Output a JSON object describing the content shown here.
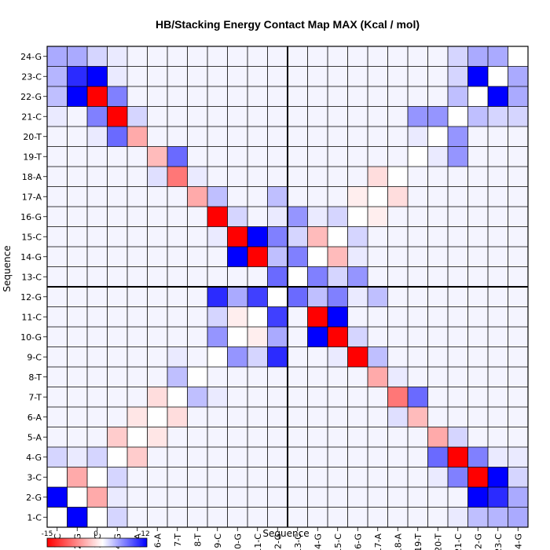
{
  "chart_data": {
    "type": "heatmap",
    "title": "HB/Stacking Energy Contact Map MAX (Kcal / mol)",
    "xlabel": "Sequence",
    "ylabel": "Sequence",
    "labels": [
      "1-C",
      "2-G",
      "3-C",
      "4-G",
      "5-A",
      "6-A",
      "7-T",
      "8-T",
      "9-C",
      "10-G",
      "11-C",
      "12-G",
      "13-C",
      "14-G",
      "15-C",
      "16-G",
      "17-A",
      "18-A",
      "19-T",
      "20-T",
      "21-C",
      "22-G",
      "23-C",
      "24-G"
    ],
    "colorbar": {
      "min": -15,
      "mid": 0,
      "max": 12,
      "ticks": [
        "-15",
        "0",
        "12"
      ]
    },
    "colors": {
      "negative": "#ff0000",
      "zero": "#ffffff",
      "positive": "#0000ff",
      "grid": "#000000"
    },
    "divider_after_index": 12,
    "matrix": [
      [
        0,
        12,
        0,
        2,
        0.5,
        0.5,
        0.5,
        0.5,
        0.5,
        0.5,
        0.5,
        0.5,
        0.5,
        0.5,
        0.5,
        0.5,
        0.5,
        0.5,
        0.5,
        0.5,
        1,
        3,
        3.5,
        4
      ],
      [
        12,
        0,
        -5,
        1,
        0.5,
        0.5,
        0.5,
        0.5,
        0.5,
        0.5,
        0.5,
        0.5,
        0.5,
        0.5,
        0.5,
        0.5,
        0.5,
        0.5,
        0.5,
        0.5,
        0.5,
        12,
        10,
        4
      ],
      [
        0,
        -5,
        0,
        2,
        0.5,
        0.5,
        0.5,
        0.5,
        0.5,
        0.5,
        0.5,
        0.5,
        0.5,
        0.5,
        0.5,
        0.5,
        0.5,
        0.5,
        0.5,
        1,
        6,
        -15,
        12,
        2
      ],
      [
        2,
        1,
        2,
        0,
        -3,
        0.5,
        0.5,
        0.5,
        0.5,
        0.5,
        0.5,
        0.5,
        0.5,
        0.5,
        0.5,
        0.5,
        0.5,
        0.5,
        0.5,
        7,
        -15,
        6,
        1,
        1
      ],
      [
        0.5,
        0.5,
        0.5,
        -3,
        0,
        -1.5,
        0.5,
        0.5,
        0.5,
        0.5,
        0.5,
        0.5,
        0.5,
        0.5,
        0.5,
        0.5,
        0.5,
        0.5,
        0.5,
        -5,
        2,
        0.5,
        0.5,
        0.5
      ],
      [
        0.5,
        0.5,
        0.5,
        0.5,
        -1.5,
        0,
        -2,
        0.5,
        0.5,
        0.5,
        0.5,
        0.5,
        0.5,
        0.5,
        0.5,
        0.5,
        0.5,
        1.5,
        -4,
        0.5,
        0.5,
        0.5,
        0.5,
        0.5
      ],
      [
        0.5,
        0.5,
        0.5,
        0.5,
        0.5,
        -2,
        0,
        3,
        1,
        0.5,
        0.5,
        0.5,
        0.5,
        0.5,
        0.5,
        0.5,
        0.5,
        -8,
        7,
        0.5,
        0.5,
        0.5,
        0.5,
        0.5
      ],
      [
        0.5,
        0.5,
        0.5,
        0.5,
        0.5,
        0.5,
        3,
        0,
        0.5,
        0.5,
        0.5,
        0.5,
        0.5,
        0.5,
        0.5,
        0.5,
        -5,
        1,
        0.5,
        0.5,
        0.5,
        0.5,
        0.5,
        0.5
      ],
      [
        0.5,
        0.5,
        0.5,
        0.5,
        0.5,
        0.5,
        1,
        0.5,
        0,
        5,
        2,
        10,
        0.5,
        0.5,
        1,
        -15,
        3,
        0.5,
        0.5,
        0.5,
        0.5,
        0.5,
        0.5,
        0.5
      ],
      [
        0.5,
        0.5,
        0.5,
        0.5,
        0.5,
        0.5,
        0.5,
        0.5,
        5,
        0,
        -1,
        4,
        0.5,
        12,
        -15,
        2,
        0.5,
        0.5,
        0.5,
        0.5,
        0.5,
        0.5,
        0.5,
        0.5
      ],
      [
        0.5,
        0.5,
        0.5,
        0.5,
        0.5,
        0.5,
        0.5,
        0.5,
        2,
        -1,
        0,
        9,
        0.5,
        -15,
        12,
        0.5,
        0.5,
        0.5,
        0.5,
        0.5,
        0.5,
        0.5,
        0.5,
        0.5
      ],
      [
        0.5,
        0.5,
        0.5,
        0.5,
        0.5,
        0.5,
        0.5,
        0.5,
        10,
        4,
        9,
        0,
        7,
        3,
        6,
        1,
        3,
        0.5,
        0.5,
        0.5,
        0.5,
        0.5,
        0.5,
        0.5
      ],
      [
        0.5,
        0.5,
        0.5,
        0.5,
        0.5,
        0.5,
        0.5,
        0.5,
        0.5,
        0.5,
        0.5,
        7,
        0,
        6,
        2,
        5,
        0.5,
        0.5,
        0.5,
        0.5,
        0.5,
        0.5,
        0.5,
        0.5
      ],
      [
        0.5,
        0.5,
        0.5,
        0.5,
        0.5,
        0.5,
        0.5,
        0.5,
        0.5,
        12,
        -15,
        3,
        6,
        0,
        -4,
        1,
        0.5,
        0.5,
        0.5,
        0.5,
        0.5,
        0.5,
        0.5,
        0.5
      ],
      [
        0.5,
        0.5,
        0.5,
        0.5,
        0.5,
        0.5,
        0.5,
        0.5,
        1,
        -15,
        12,
        6,
        2,
        -4,
        0,
        2,
        0.5,
        0.5,
        0.5,
        0.5,
        0.5,
        0.5,
        0.5,
        0.5
      ],
      [
        0.5,
        0.5,
        0.5,
        0.5,
        0.5,
        0.5,
        0.5,
        0.5,
        -15,
        2,
        0.5,
        1,
        5,
        1,
        2,
        0,
        -1,
        0.5,
        0.5,
        0.5,
        0.5,
        0.5,
        0.5,
        0.5
      ],
      [
        0.5,
        0.5,
        0.5,
        0.5,
        0.5,
        0.5,
        0.5,
        -5,
        3,
        0.5,
        0.5,
        3,
        0.5,
        0.5,
        0.5,
        -1,
        0,
        -2,
        0.5,
        0.5,
        0.5,
        0.5,
        0.5,
        0.5
      ],
      [
        0.5,
        0.5,
        0.5,
        0.5,
        0.5,
        1.5,
        -8,
        1,
        0.5,
        0.5,
        0.5,
        0.5,
        0.5,
        0.5,
        0.5,
        0.5,
        -2,
        0,
        0.5,
        0.5,
        0.5,
        0.5,
        0.5,
        0.5
      ],
      [
        0.5,
        0.5,
        0.5,
        0.5,
        0.5,
        -4,
        7,
        0.5,
        0.5,
        0.5,
        0.5,
        0.5,
        0.5,
        0.5,
        0.5,
        0.5,
        0.5,
        0.5,
        0,
        1,
        5,
        0.5,
        0.5,
        0.5
      ],
      [
        0.5,
        0.5,
        1,
        7,
        -5,
        0.5,
        0.5,
        0.5,
        0.5,
        0.5,
        0.5,
        0.5,
        0.5,
        0.5,
        0.5,
        0.5,
        0.5,
        0.5,
        1,
        0,
        5,
        0.5,
        0.5,
        0.5
      ],
      [
        1,
        0.5,
        6,
        -15,
        2,
        0.5,
        0.5,
        0.5,
        0.5,
        0.5,
        0.5,
        0.5,
        0.5,
        0.5,
        0.5,
        0.5,
        0.5,
        0.5,
        5,
        5,
        0,
        3,
        2,
        2
      ],
      [
        3,
        12,
        -15,
        6,
        0.5,
        0.5,
        0.5,
        0.5,
        0.5,
        0.5,
        0.5,
        0.5,
        0.5,
        0.5,
        0.5,
        0.5,
        0.5,
        0.5,
        0.5,
        0.5,
        3,
        0,
        12,
        4
      ],
      [
        3.5,
        10,
        12,
        1,
        0.5,
        0.5,
        0.5,
        0.5,
        0.5,
        0.5,
        0.5,
        0.5,
        0.5,
        0.5,
        0.5,
        0.5,
        0.5,
        0.5,
        0.5,
        0.5,
        2,
        12,
        0,
        4
      ],
      [
        4,
        4,
        2,
        1,
        0.5,
        0.5,
        0.5,
        0.5,
        0.5,
        0.5,
        0.5,
        0.5,
        0.5,
        0.5,
        0.5,
        0.5,
        0.5,
        0.5,
        0.5,
        0.5,
        2,
        4,
        4,
        0
      ]
    ]
  }
}
